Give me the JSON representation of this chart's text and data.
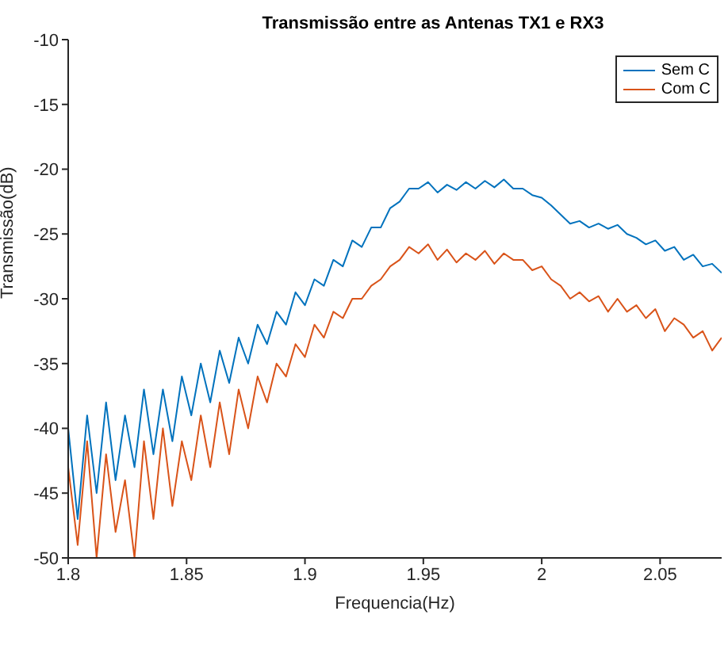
{
  "chart_data": {
    "type": "line",
    "title": "Transmissão entre as Antenas TX1 e RX3",
    "xlabel": "Frequencia(Hz)",
    "ylabel": "Transmissão(dB)",
    "x": [
      1.8,
      1.804,
      1.808,
      1.812,
      1.816,
      1.82,
      1.824,
      1.828,
      1.832,
      1.836,
      1.84,
      1.844,
      1.848,
      1.852,
      1.856,
      1.86,
      1.864,
      1.868,
      1.872,
      1.876,
      1.88,
      1.884,
      1.888,
      1.892,
      1.896,
      1.9,
      1.904,
      1.908,
      1.912,
      1.916,
      1.92,
      1.924,
      1.928,
      1.932,
      1.936,
      1.94,
      1.944,
      1.948,
      1.952,
      1.956,
      1.96,
      1.964,
      1.968,
      1.972,
      1.976,
      1.98,
      1.984,
      1.988,
      1.992,
      1.996,
      2.0,
      2.004,
      2.008,
      2.012,
      2.016,
      2.02,
      2.024,
      2.028,
      2.032,
      2.036,
      2.04,
      2.044,
      2.048,
      2.052,
      2.056,
      2.06,
      2.064,
      2.068,
      2.072,
      2.076
    ],
    "series": [
      {
        "name": "Sem C",
        "color": "#0072bd",
        "values": [
          -40,
          -47,
          -39,
          -45,
          -38,
          -44,
          -39,
          -43,
          -37,
          -42,
          -37,
          -41,
          -36,
          -39,
          -35,
          -38,
          -34,
          -36.5,
          -33,
          -35,
          -32,
          -33.5,
          -31,
          -32,
          -29.5,
          -30.5,
          -28.5,
          -29,
          -27,
          -27.5,
          -25.5,
          -26,
          -24.5,
          -24.5,
          -23,
          -22.5,
          -21.5,
          -21.5,
          -21,
          -21.8,
          -21.2,
          -21.6,
          -21,
          -21.5,
          -20.9,
          -21.4,
          -20.8,
          -21.5,
          -21.5,
          -22,
          -22.2,
          -22.8,
          -23.5,
          -24.2,
          -24,
          -24.5,
          -24.2,
          -24.6,
          -24.3,
          -25,
          -25.3,
          -25.8,
          -25.5,
          -26.3,
          -26,
          -27,
          -26.6,
          -27.5,
          -27.3,
          -28
        ]
      },
      {
        "name": "Com C",
        "color": "#d95319",
        "values": [
          -43,
          -49,
          -41,
          -50,
          -42,
          -48,
          -44,
          -50,
          -41,
          -47,
          -40,
          -46,
          -41,
          -44,
          -39,
          -43,
          -38,
          -42,
          -37,
          -40,
          -36,
          -38,
          -35,
          -36,
          -33.5,
          -34.5,
          -32,
          -33,
          -31,
          -31.5,
          -30,
          -30,
          -29,
          -28.5,
          -27.5,
          -27,
          -26,
          -26.5,
          -25.8,
          -27,
          -26.2,
          -27.2,
          -26.5,
          -27,
          -26.3,
          -27.3,
          -26.5,
          -27,
          -27,
          -27.8,
          -27.5,
          -28.5,
          -29,
          -30,
          -29.5,
          -30.2,
          -29.8,
          -31,
          -30,
          -31,
          -30.5,
          -31.5,
          -30.8,
          -32.5,
          -31.5,
          -32,
          -33,
          -32.5,
          -34,
          -33
        ]
      }
    ],
    "xlim": [
      1.8,
      2.076
    ],
    "xticks": [
      1.8,
      1.85,
      1.9,
      1.95,
      2,
      2.05
    ],
    "ylim": [
      -50,
      -10
    ],
    "yticks": [
      -50,
      -45,
      -40,
      -35,
      -30,
      -25,
      -20,
      -15,
      -10
    ],
    "legend": "top right",
    "grid": false,
    "marker": "none",
    "line_style": "solid"
  }
}
